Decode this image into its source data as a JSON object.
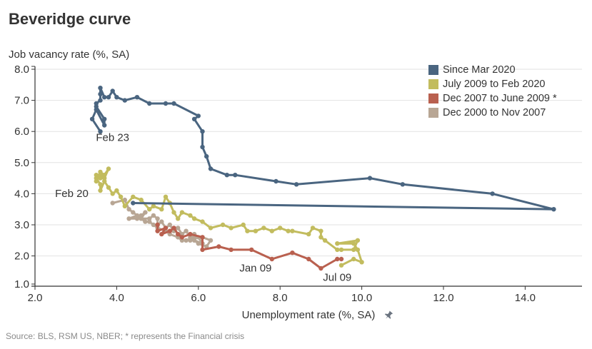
{
  "title": "Beveridge curve",
  "source_note": "Source: BLS, RSM US, NBER; * represents the Financial crisis",
  "chart_data": {
    "type": "line",
    "title": "Beveridge curve",
    "xlabel": "Unemployment rate (%, SA)",
    "ylabel": "Job vacancy rate (%, SA)",
    "xlim": [
      2.0,
      15.5
    ],
    "ylim": [
      1.0,
      8.0
    ],
    "x_ticks": [
      2.0,
      4.0,
      6.0,
      8.0,
      10.0,
      12.0,
      14.0
    ],
    "x_tick_labels": [
      "2.0",
      "4.0",
      "6.0",
      "8.0",
      "10.0",
      "12.0",
      "14.0"
    ],
    "y_ticks": [
      1.0,
      2.0,
      3.0,
      4.0,
      5.0,
      6.0,
      7.0,
      8.0
    ],
    "y_tick_labels": [
      "1.0",
      "2.0",
      "3.0",
      "4.0",
      "5.0",
      "6.0",
      "7.0",
      "8.0"
    ],
    "grid": true,
    "legend_position": "top-right",
    "annotations": [
      {
        "text": "Feb 23",
        "x": 3.9,
        "y": 5.7
      },
      {
        "text": "Feb 20",
        "x": 2.9,
        "y": 3.9
      },
      {
        "text": "Jan 09",
        "x": 7.4,
        "y": 1.5
      },
      {
        "text": "Jul 09",
        "x": 9.4,
        "y": 1.2
      }
    ],
    "series": [
      {
        "name": "Dec 2000 to Nov 2007",
        "color": "#b8a694",
        "points": [
          [
            3.9,
            3.7
          ],
          [
            4.2,
            3.8
          ],
          [
            4.3,
            3.5
          ],
          [
            4.4,
            3.4
          ],
          [
            4.5,
            3.3
          ],
          [
            4.3,
            3.2
          ],
          [
            4.5,
            3.2
          ],
          [
            4.6,
            3.3
          ],
          [
            4.7,
            3.4
          ],
          [
            4.6,
            3.2
          ],
          [
            4.8,
            3.2
          ],
          [
            4.9,
            3.3
          ],
          [
            5.0,
            3.2
          ],
          [
            5.0,
            3.0
          ],
          [
            5.1,
            3.1
          ],
          [
            5.2,
            2.9
          ],
          [
            5.3,
            3.0
          ],
          [
            5.4,
            2.8
          ],
          [
            5.5,
            2.9
          ],
          [
            5.6,
            2.7
          ],
          [
            5.7,
            2.8
          ],
          [
            5.8,
            2.6
          ],
          [
            5.9,
            2.7
          ],
          [
            5.8,
            2.5
          ],
          [
            6.0,
            2.6
          ],
          [
            6.1,
            2.4
          ],
          [
            5.9,
            2.5
          ],
          [
            6.0,
            2.4
          ],
          [
            6.2,
            2.3
          ],
          [
            6.3,
            2.5
          ],
          [
            6.1,
            2.6
          ],
          [
            5.9,
            2.6
          ],
          [
            5.7,
            2.5
          ],
          [
            5.6,
            2.5
          ],
          [
            5.5,
            2.6
          ],
          [
            5.3,
            2.7
          ],
          [
            5.2,
            2.8
          ],
          [
            5.0,
            2.9
          ],
          [
            4.9,
            3.0
          ],
          [
            4.8,
            3.1
          ],
          [
            4.7,
            3.1
          ],
          [
            4.6,
            3.2
          ]
        ]
      },
      {
        "name": "Dec 2007 to June 2009 *",
        "color": "#b9604f",
        "points": [
          [
            5.0,
            3.0
          ],
          [
            5.0,
            2.8
          ],
          [
            5.2,
            2.9
          ],
          [
            5.1,
            2.7
          ],
          [
            5.3,
            2.8
          ],
          [
            5.4,
            2.9
          ],
          [
            5.5,
            2.7
          ],
          [
            5.6,
            2.6
          ],
          [
            5.8,
            2.7
          ],
          [
            6.1,
            2.6
          ],
          [
            6.1,
            2.2
          ],
          [
            6.5,
            2.3
          ],
          [
            6.8,
            2.2
          ],
          [
            7.3,
            2.2
          ],
          [
            7.8,
            1.9
          ],
          [
            8.3,
            2.1
          ],
          [
            8.7,
            1.9
          ],
          [
            9.0,
            1.6
          ],
          [
            9.4,
            1.9
          ],
          [
            9.5,
            1.9
          ]
        ]
      },
      {
        "name": "July 2009 to Feb 2020",
        "color": "#c2bc5e",
        "points": [
          [
            9.5,
            1.7
          ],
          [
            9.8,
            1.9
          ],
          [
            10.0,
            1.8
          ],
          [
            9.9,
            2.2
          ],
          [
            9.8,
            2.4
          ],
          [
            9.4,
            2.4
          ],
          [
            9.9,
            2.5
          ],
          [
            9.8,
            2.2
          ],
          [
            9.5,
            2.2
          ],
          [
            9.4,
            2.2
          ],
          [
            9.1,
            2.5
          ],
          [
            9.0,
            2.6
          ],
          [
            9.0,
            2.8
          ],
          [
            8.8,
            2.9
          ],
          [
            8.7,
            2.7
          ],
          [
            8.3,
            2.8
          ],
          [
            8.2,
            2.8
          ],
          [
            8.0,
            2.9
          ],
          [
            7.8,
            2.8
          ],
          [
            7.6,
            2.9
          ],
          [
            7.4,
            2.8
          ],
          [
            7.2,
            2.8
          ],
          [
            7.1,
            3.0
          ],
          [
            6.8,
            2.9
          ],
          [
            6.6,
            3.0
          ],
          [
            6.3,
            2.9
          ],
          [
            6.1,
            3.1
          ],
          [
            5.9,
            3.2
          ],
          [
            5.8,
            3.3
          ],
          [
            5.6,
            3.4
          ],
          [
            5.5,
            3.2
          ],
          [
            5.4,
            3.4
          ],
          [
            5.3,
            3.7
          ],
          [
            5.2,
            3.9
          ],
          [
            5.1,
            3.5
          ],
          [
            4.9,
            3.6
          ],
          [
            4.8,
            3.5
          ],
          [
            4.6,
            3.8
          ],
          [
            4.4,
            3.9
          ],
          [
            4.2,
            3.6
          ],
          [
            4.1,
            3.9
          ],
          [
            4.0,
            4.1
          ],
          [
            3.9,
            4.0
          ],
          [
            3.8,
            4.2
          ],
          [
            3.7,
            4.4
          ],
          [
            3.6,
            4.1
          ],
          [
            3.6,
            4.3
          ],
          [
            3.5,
            4.5
          ],
          [
            3.6,
            4.6
          ],
          [
            3.7,
            4.5
          ],
          [
            3.8,
            4.8
          ],
          [
            3.7,
            4.6
          ],
          [
            3.6,
            4.7
          ],
          [
            3.5,
            4.4
          ],
          [
            3.5,
            4.6
          ],
          [
            3.6,
            4.5
          ]
        ]
      },
      {
        "name": "Since Mar 2020",
        "color": "#4a6580",
        "points": [
          [
            4.4,
            3.7
          ],
          [
            14.7,
            3.5
          ],
          [
            13.2,
            4.0
          ],
          [
            11.0,
            4.3
          ],
          [
            10.2,
            4.5
          ],
          [
            8.4,
            4.3
          ],
          [
            7.9,
            4.4
          ],
          [
            6.9,
            4.6
          ],
          [
            6.7,
            4.6
          ],
          [
            6.3,
            4.8
          ],
          [
            6.2,
            5.2
          ],
          [
            6.1,
            5.5
          ],
          [
            6.1,
            6.0
          ],
          [
            5.9,
            6.4
          ],
          [
            6.0,
            6.5
          ],
          [
            5.4,
            6.9
          ],
          [
            5.2,
            6.9
          ],
          [
            4.8,
            6.9
          ],
          [
            4.5,
            7.1
          ],
          [
            4.2,
            7.0
          ],
          [
            4.0,
            7.1
          ],
          [
            3.9,
            7.3
          ],
          [
            3.8,
            7.1
          ],
          [
            3.7,
            7.1
          ],
          [
            3.6,
            7.4
          ],
          [
            3.6,
            7.2
          ],
          [
            3.6,
            7.0
          ],
          [
            3.5,
            6.9
          ],
          [
            3.5,
            6.8
          ],
          [
            3.7,
            6.4
          ],
          [
            3.7,
            6.2
          ],
          [
            3.5,
            6.7
          ],
          [
            3.4,
            6.4
          ],
          [
            3.6,
            6.0
          ]
        ]
      }
    ],
    "legend_order": [
      "Since Mar 2020",
      "July 2009 to Feb 2020",
      "Dec 2007 to June 2009 *",
      "Dec 2000 to Nov 2007"
    ]
  },
  "legend": [
    {
      "label": "Since Mar 2020",
      "color": "#4a6580"
    },
    {
      "label": "July 2009 to Feb 2020",
      "color": "#c2bc5e"
    },
    {
      "label": "Dec 2007 to June 2009 *",
      "color": "#b9604f"
    },
    {
      "label": "Dec 2000 to Nov 2007",
      "color": "#b8a694"
    }
  ],
  "icons": {
    "xlabel_pin": "pin-icon"
  }
}
